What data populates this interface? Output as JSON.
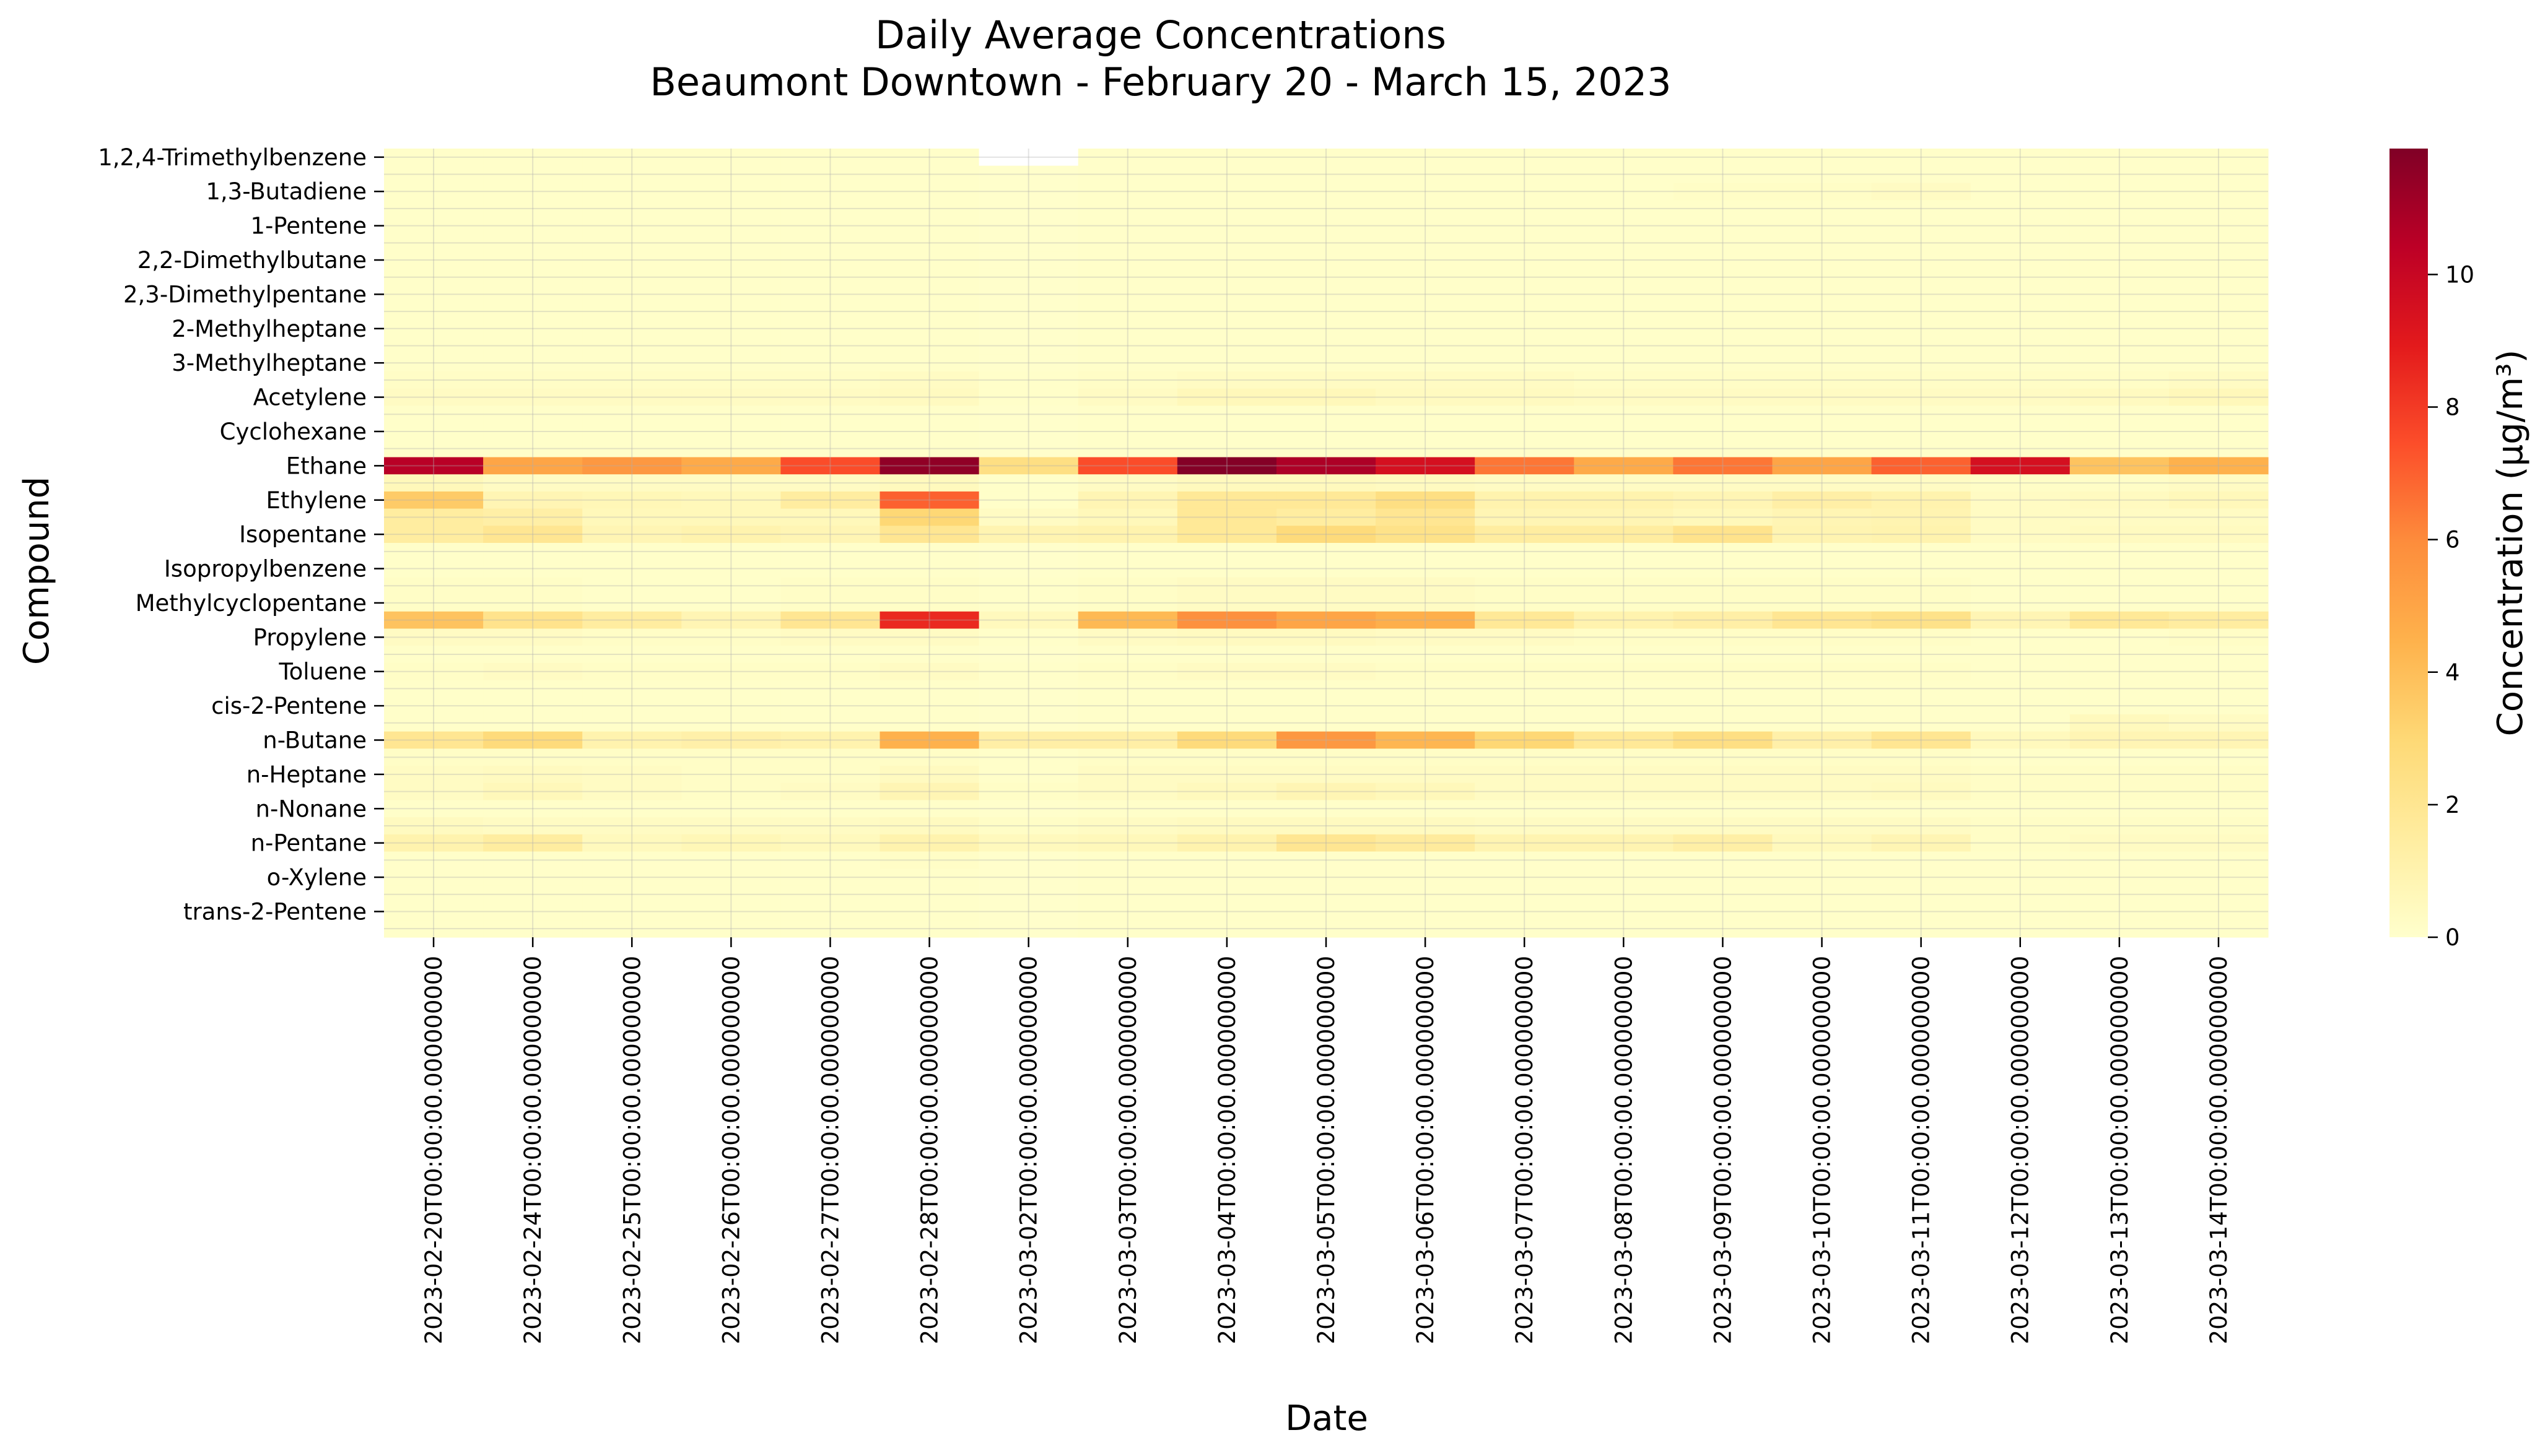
{
  "chart_data": {
    "type": "heatmap",
    "title": "Daily Average Concentrations\nBeaumont Downtown - February 20 - March 15, 2023",
    "xlabel": "Date",
    "ylabel": "Compound",
    "colorbar_label": "Concentration (μg/m³)",
    "colorbar_ticks": [
      0,
      2,
      4,
      6,
      8,
      10
    ],
    "vmin": 0,
    "vmax": 11.9,
    "colormap": "YlOrRd",
    "grid": true,
    "x": [
      "2023-02-20T00:00:00.000000000",
      "2023-02-24T00:00:00.000000000",
      "2023-02-25T00:00:00.000000000",
      "2023-02-26T00:00:00.000000000",
      "2023-02-27T00:00:00.000000000",
      "2023-02-28T00:00:00.000000000",
      "2023-03-02T00:00:00.000000000",
      "2023-03-03T00:00:00.000000000",
      "2023-03-04T00:00:00.000000000",
      "2023-03-05T00:00:00.000000000",
      "2023-03-06T00:00:00.000000000",
      "2023-03-07T00:00:00.000000000",
      "2023-03-08T00:00:00.000000000",
      "2023-03-09T00:00:00.000000000",
      "2023-03-10T00:00:00.000000000",
      "2023-03-11T00:00:00.000000000",
      "2023-03-12T00:00:00.000000000",
      "2023-03-13T00:00:00.000000000",
      "2023-03-14T00:00:00.000000000"
    ],
    "y_labeled": [
      "1,2,4-Trimethylbenzene",
      "1,3-Butadiene",
      "1-Pentene",
      "2,2-Dimethylbutane",
      "2,3-Dimethylpentane",
      "2-Methylheptane",
      "3-Methylheptane",
      "Acetylene",
      "Cyclohexane",
      "Ethane",
      "Ethylene",
      "Isopentane",
      "Isopropylbenzene",
      "Methylcyclopentane",
      "Propylene",
      "Toluene",
      "cis-2-Pentene",
      "n-Butane",
      "n-Heptane",
      "n-Nonane",
      "n-Pentane",
      "o-Xylene",
      "trans-2-Pentene"
    ],
    "rows": [
      {
        "label": "1,2,4-Trimethylbenzene",
        "values": [
          0.1,
          0.1,
          0.1,
          0.1,
          0.1,
          0.1,
          null,
          0.1,
          0.1,
          0.1,
          0.1,
          0.1,
          0.1,
          0.1,
          0.1,
          0.1,
          0.1,
          0.1,
          0.1
        ]
      },
      {
        "label": "",
        "values": [
          0.1,
          0.1,
          0.1,
          0.1,
          0.1,
          0.1,
          0.05,
          0.1,
          0.1,
          0.1,
          0.1,
          0.1,
          0.1,
          0.1,
          0.1,
          0.1,
          0.1,
          0.1,
          0.1
        ]
      },
      {
        "label": "1,3-Butadiene",
        "values": [
          0.1,
          0.1,
          0.1,
          0.1,
          0.1,
          0.1,
          0.05,
          0.1,
          0.1,
          0.1,
          0.1,
          0.1,
          0.1,
          0.2,
          0.2,
          0.3,
          0.1,
          0.1,
          0.1
        ]
      },
      {
        "label": "",
        "values": [
          0.1,
          0.1,
          0.1,
          0.1,
          0.1,
          0.1,
          0.05,
          0.1,
          0.1,
          0.1,
          0.1,
          0.1,
          0.1,
          0.1,
          0.1,
          0.1,
          0.1,
          0.1,
          0.1
        ]
      },
      {
        "label": "1-Pentene",
        "values": [
          0.1,
          0.1,
          0.1,
          0.1,
          0.1,
          0.1,
          0.05,
          0.1,
          0.1,
          0.1,
          0.1,
          0.1,
          0.1,
          0.1,
          0.1,
          0.1,
          0.1,
          0.1,
          0.1
        ]
      },
      {
        "label": "",
        "values": [
          0.1,
          0.1,
          0.1,
          0.1,
          0.1,
          0.1,
          0.05,
          0.1,
          0.1,
          0.1,
          0.1,
          0.1,
          0.1,
          0.1,
          0.1,
          0.1,
          0.1,
          0.1,
          0.1
        ]
      },
      {
        "label": "2,2-Dimethylbutane",
        "values": [
          0.1,
          0.1,
          0.1,
          0.1,
          0.1,
          0.1,
          0.05,
          0.1,
          0.1,
          0.1,
          0.1,
          0.1,
          0.1,
          0.1,
          0.1,
          0.1,
          0.1,
          0.1,
          0.1
        ]
      },
      {
        "label": "",
        "values": [
          0.1,
          0.1,
          0.1,
          0.1,
          0.1,
          0.1,
          0.05,
          0.1,
          0.1,
          0.1,
          0.1,
          0.1,
          0.1,
          0.1,
          0.1,
          0.1,
          0.1,
          0.1,
          0.1
        ]
      },
      {
        "label": "2,3-Dimethylpentane",
        "values": [
          0.1,
          0.1,
          0.1,
          0.1,
          0.1,
          0.1,
          0.05,
          0.1,
          0.1,
          0.1,
          0.1,
          0.1,
          0.1,
          0.1,
          0.1,
          0.1,
          0.1,
          0.1,
          0.1
        ]
      },
      {
        "label": "",
        "values": [
          0.1,
          0.1,
          0.1,
          0.1,
          0.1,
          0.1,
          0.05,
          0.1,
          0.1,
          0.1,
          0.1,
          0.1,
          0.1,
          0.1,
          0.1,
          0.1,
          0.1,
          0.1,
          0.1
        ]
      },
      {
        "label": "2-Methylheptane",
        "values": [
          0.1,
          0.1,
          0.1,
          0.1,
          0.1,
          0.1,
          0.05,
          0.1,
          0.1,
          0.1,
          0.1,
          0.1,
          0.1,
          0.1,
          0.1,
          0.1,
          0.1,
          0.1,
          0.1
        ]
      },
      {
        "label": "",
        "values": [
          0.1,
          0.1,
          0.1,
          0.1,
          0.1,
          0.1,
          0.05,
          0.1,
          0.1,
          0.1,
          0.1,
          0.1,
          0.1,
          0.1,
          0.1,
          0.1,
          0.1,
          0.1,
          0.1
        ]
      },
      {
        "label": "3-Methylheptane",
        "values": [
          0.1,
          0.1,
          0.1,
          0.1,
          0.1,
          0.1,
          0.05,
          0.1,
          0.1,
          0.1,
          0.1,
          0.1,
          0.1,
          0.1,
          0.1,
          0.1,
          0.1,
          0.1,
          0.1
        ]
      },
      {
        "label": "",
        "values": [
          0.2,
          0.2,
          0.2,
          0.2,
          0.2,
          0.3,
          0.1,
          0.2,
          0.3,
          0.3,
          0.3,
          0.3,
          0.2,
          0.2,
          0.2,
          0.2,
          0.2,
          0.2,
          0.3
        ]
      },
      {
        "label": "Acetylene",
        "values": [
          0.3,
          0.3,
          0.3,
          0.3,
          0.3,
          0.4,
          0.1,
          0.3,
          0.6,
          0.6,
          0.4,
          0.4,
          0.3,
          0.3,
          0.3,
          0.3,
          0.3,
          0.4,
          0.6
        ]
      },
      {
        "label": "",
        "values": [
          0.1,
          0.1,
          0.1,
          0.1,
          0.1,
          0.1,
          0.05,
          0.1,
          0.1,
          0.1,
          0.1,
          0.1,
          0.1,
          0.1,
          0.1,
          0.1,
          0.1,
          0.1,
          0.1
        ]
      },
      {
        "label": "Cyclohexane",
        "values": [
          0.1,
          0.1,
          0.1,
          0.1,
          0.1,
          0.1,
          0.05,
          0.1,
          0.1,
          0.1,
          0.1,
          0.1,
          0.1,
          0.1,
          0.1,
          0.1,
          0.1,
          0.1,
          0.1
        ]
      },
      {
        "label": "",
        "values": [
          0.1,
          0.1,
          0.1,
          0.1,
          0.1,
          0.1,
          0.05,
          0.1,
          0.1,
          0.1,
          0.1,
          0.1,
          0.1,
          0.1,
          0.1,
          0.1,
          0.1,
          0.1,
          0.1
        ]
      },
      {
        "label": "Ethane",
        "values": [
          10.5,
          5.0,
          5.5,
          4.8,
          7.5,
          11.5,
          2.5,
          7.5,
          11.8,
          10.8,
          9.5,
          6.5,
          4.8,
          6.5,
          5.0,
          7.0,
          9.5,
          3.8,
          4.5
        ]
      },
      {
        "label": "",
        "values": [
          0.6,
          0.3,
          0.3,
          0.3,
          0.3,
          0.5,
          0.1,
          0.3,
          0.5,
          0.5,
          0.4,
          0.3,
          0.3,
          0.3,
          0.3,
          0.3,
          0.2,
          0.2,
          0.3
        ]
      },
      {
        "label": "Ethylene",
        "values": [
          3.5,
          0.8,
          0.7,
          0.6,
          1.5,
          7.0,
          0.1,
          0.8,
          1.8,
          1.8,
          2.5,
          1.0,
          1.0,
          0.8,
          1.3,
          1.0,
          0.3,
          0.4,
          0.6
        ]
      },
      {
        "label": "",
        "values": [
          1.5,
          1.3,
          0.6,
          0.6,
          0.6,
          3.0,
          0.3,
          0.6,
          1.8,
          1.5,
          2.0,
          0.8,
          0.8,
          0.6,
          0.8,
          0.9,
          0.3,
          0.3,
          0.3
        ]
      },
      {
        "label": "Isopentane",
        "values": [
          1.5,
          2.0,
          0.8,
          1.0,
          0.8,
          2.0,
          0.9,
          1.0,
          1.8,
          2.8,
          2.3,
          1.5,
          1.5,
          2.2,
          0.9,
          1.0,
          0.3,
          0.4,
          0.4
        ]
      },
      {
        "label": "",
        "values": [
          0.1,
          0.1,
          0.1,
          0.1,
          0.1,
          0.1,
          0.05,
          0.1,
          0.1,
          0.1,
          0.1,
          0.1,
          0.1,
          0.1,
          0.1,
          0.1,
          0.1,
          0.1,
          0.1
        ]
      },
      {
        "label": "Isopropylbenzene",
        "values": [
          0.1,
          0.1,
          0.1,
          0.1,
          0.1,
          0.1,
          0.05,
          0.1,
          0.1,
          0.1,
          0.1,
          0.1,
          0.1,
          0.1,
          0.1,
          0.1,
          0.1,
          0.1,
          0.1
        ]
      },
      {
        "label": "",
        "values": [
          0.2,
          0.2,
          0.1,
          0.1,
          0.2,
          0.2,
          0.1,
          0.2,
          0.3,
          0.3,
          0.3,
          0.2,
          0.2,
          0.2,
          0.2,
          0.2,
          0.1,
          0.1,
          0.1
        ]
      },
      {
        "label": "Methylcyclopentane",
        "values": [
          0.2,
          0.2,
          0.1,
          0.1,
          0.2,
          0.2,
          0.1,
          0.2,
          0.3,
          0.3,
          0.3,
          0.2,
          0.2,
          0.2,
          0.2,
          0.2,
          0.1,
          0.1,
          0.1
        ]
      },
      {
        "label": "",
        "values": [
          3.8,
          2.2,
          1.5,
          0.8,
          2.0,
          8.5,
          0.5,
          4.2,
          5.8,
          5.0,
          4.6,
          1.8,
          1.0,
          1.3,
          2.0,
          2.3,
          0.8,
          1.8,
          1.5
        ]
      },
      {
        "label": "Propylene",
        "values": [
          0.3,
          0.3,
          0.2,
          0.2,
          0.3,
          0.3,
          0.1,
          0.3,
          0.4,
          0.4,
          0.3,
          0.3,
          0.2,
          0.2,
          0.2,
          0.2,
          0.1,
          0.1,
          0.2
        ]
      },
      {
        "label": "",
        "values": [
          0.1,
          0.1,
          0.1,
          0.1,
          0.1,
          0.1,
          0.05,
          0.1,
          0.1,
          0.1,
          0.1,
          0.1,
          0.1,
          0.1,
          0.1,
          0.1,
          0.1,
          0.1,
          0.1
        ]
      },
      {
        "label": "Toluene",
        "values": [
          0.2,
          0.3,
          0.2,
          0.2,
          0.2,
          0.3,
          0.1,
          0.2,
          0.3,
          0.3,
          0.2,
          0.2,
          0.2,
          0.2,
          0.2,
          0.2,
          0.1,
          0.1,
          0.1
        ]
      },
      {
        "label": "",
        "values": [
          0.1,
          0.1,
          0.1,
          0.1,
          0.1,
          0.1,
          0.05,
          0.1,
          0.1,
          0.1,
          0.1,
          0.1,
          0.1,
          0.1,
          0.1,
          0.1,
          0.1,
          0.1,
          0.1
        ]
      },
      {
        "label": "cis-2-Pentene",
        "values": [
          0.1,
          0.1,
          0.1,
          0.1,
          0.1,
          0.1,
          0.05,
          0.1,
          0.1,
          0.1,
          0.1,
          0.1,
          0.1,
          0.1,
          0.1,
          0.1,
          0.1,
          0.1,
          0.1
        ]
      },
      {
        "label": "",
        "values": [
          0.1,
          0.1,
          0.1,
          0.1,
          0.1,
          0.1,
          0.05,
          0.1,
          0.1,
          0.1,
          0.1,
          0.1,
          0.1,
          0.1,
          0.1,
          0.1,
          0.1,
          0.5,
          0.3
        ]
      },
      {
        "label": "n-Butane",
        "values": [
          2.0,
          2.8,
          1.0,
          1.2,
          1.0,
          4.5,
          1.3,
          1.3,
          2.8,
          5.5,
          4.3,
          3.0,
          1.8,
          2.5,
          1.2,
          2.0,
          0.5,
          0.8,
          0.8
        ]
      },
      {
        "label": "",
        "values": [
          0.2,
          0.2,
          0.2,
          0.2,
          0.2,
          0.2,
          0.1,
          0.2,
          0.2,
          0.2,
          0.2,
          0.2,
          0.2,
          0.2,
          0.2,
          0.2,
          0.1,
          0.1,
          0.1
        ]
      },
      {
        "label": "n-Heptane",
        "values": [
          0.3,
          0.4,
          0.3,
          0.2,
          0.2,
          0.4,
          0.1,
          0.3,
          0.3,
          0.3,
          0.3,
          0.3,
          0.3,
          0.3,
          0.3,
          0.3,
          0.2,
          0.2,
          0.2
        ]
      },
      {
        "label": "",
        "values": [
          0.3,
          0.6,
          0.3,
          0.2,
          0.3,
          0.8,
          0.2,
          0.3,
          0.5,
          0.8,
          0.6,
          0.3,
          0.3,
          0.3,
          0.3,
          0.4,
          0.2,
          0.2,
          0.2
        ]
      },
      {
        "label": "n-Nonane",
        "values": [
          0.1,
          0.1,
          0.1,
          0.1,
          0.1,
          0.1,
          0.05,
          0.1,
          0.1,
          0.1,
          0.1,
          0.1,
          0.1,
          0.1,
          0.1,
          0.1,
          0.1,
          0.1,
          0.1
        ]
      },
      {
        "label": "",
        "values": [
          0.4,
          0.3,
          0.3,
          0.3,
          0.3,
          0.4,
          0.2,
          0.3,
          0.4,
          0.4,
          0.4,
          0.3,
          0.3,
          0.3,
          0.3,
          0.3,
          0.2,
          0.2,
          0.2
        ]
      },
      {
        "label": "n-Pentane",
        "values": [
          1.0,
          1.5,
          0.5,
          0.7,
          0.5,
          1.0,
          0.5,
          0.6,
          1.0,
          2.0,
          1.6,
          0.9,
          0.9,
          1.3,
          0.5,
          0.8,
          0.2,
          0.3,
          0.3
        ]
      },
      {
        "label": "",
        "values": [
          0.1,
          0.1,
          0.1,
          0.1,
          0.1,
          0.2,
          0.05,
          0.1,
          0.1,
          0.1,
          0.1,
          0.1,
          0.1,
          0.1,
          0.1,
          0.1,
          0.1,
          0.1,
          0.1
        ]
      },
      {
        "label": "o-Xylene",
        "values": [
          0.1,
          0.1,
          0.1,
          0.1,
          0.1,
          0.1,
          0.05,
          0.1,
          0.1,
          0.1,
          0.1,
          0.1,
          0.1,
          0.1,
          0.1,
          0.1,
          0.1,
          0.1,
          0.1
        ]
      },
      {
        "label": "",
        "values": [
          0.1,
          0.1,
          0.1,
          0.1,
          0.1,
          0.1,
          0.05,
          0.1,
          0.1,
          0.1,
          0.1,
          0.1,
          0.1,
          0.1,
          0.1,
          0.1,
          0.1,
          0.1,
          0.1
        ]
      },
      {
        "label": "trans-2-Pentene",
        "values": [
          0.1,
          0.1,
          0.1,
          0.1,
          0.1,
          0.1,
          0.05,
          0.1,
          0.1,
          0.1,
          0.1,
          0.1,
          0.1,
          0.1,
          0.1,
          0.1,
          0.1,
          0.1,
          0.1
        ]
      },
      {
        "label": "",
        "values": [
          0.1,
          0.1,
          0.1,
          0.1,
          0.1,
          0.1,
          0.05,
          0.1,
          0.1,
          0.1,
          0.1,
          0.1,
          0.1,
          0.1,
          0.1,
          0.1,
          0.1,
          0.1,
          0.1
        ]
      }
    ]
  }
}
